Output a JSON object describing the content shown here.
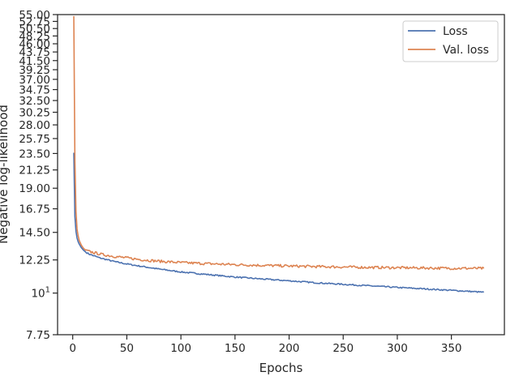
{
  "chart_data": {
    "type": "line",
    "title": "",
    "xlabel": "Epochs",
    "ylabel": "Negative log-likelihood",
    "y_scale": "log",
    "xlim": [
      -14,
      399
    ],
    "ylim": [
      7.75,
      55.0
    ],
    "x_ticks": [
      0,
      50,
      100,
      150,
      200,
      250,
      300,
      350
    ],
    "y_ticks": [
      {
        "value": 55.0,
        "label": "55.00"
      },
      {
        "value": 52.75,
        "label": "52.75"
      },
      {
        "value": 50.5,
        "label": "50.50"
      },
      {
        "value": 48.25,
        "label": "48.25"
      },
      {
        "value": 46.0,
        "label": "46.00"
      },
      {
        "value": 43.75,
        "label": "43.75"
      },
      {
        "value": 41.5,
        "label": "41.50"
      },
      {
        "value": 39.25,
        "label": "39.25"
      },
      {
        "value": 37.0,
        "label": "37.00"
      },
      {
        "value": 34.75,
        "label": "34.75"
      },
      {
        "value": 32.5,
        "label": "32.50"
      },
      {
        "value": 30.25,
        "label": "30.25"
      },
      {
        "value": 28.0,
        "label": "28.00"
      },
      {
        "value": 25.75,
        "label": "25.75"
      },
      {
        "value": 23.5,
        "label": "23.50"
      },
      {
        "value": 21.25,
        "label": "21.25"
      },
      {
        "value": 19.0,
        "label": "19.00"
      },
      {
        "value": 16.75,
        "label": "16.75"
      },
      {
        "value": 14.5,
        "label": "14.50"
      },
      {
        "value": 12.25,
        "label": "12.25"
      },
      {
        "value": 10.0,
        "label": "10",
        "sup": "1"
      },
      {
        "value": 7.75,
        "label": "7.75"
      }
    ],
    "legend": "top-right",
    "grid": false,
    "series": [
      {
        "name": "Loss",
        "color": "#4c72b0",
        "points": [
          [
            1,
            23.6
          ],
          [
            2,
            16.0
          ],
          [
            3,
            14.6
          ],
          [
            4,
            14.0
          ],
          [
            5,
            13.7
          ],
          [
            6,
            13.5
          ],
          [
            8,
            13.2
          ],
          [
            10,
            13.0
          ],
          [
            12,
            12.85
          ],
          [
            15,
            12.7
          ],
          [
            20,
            12.55
          ],
          [
            25,
            12.4
          ],
          [
            30,
            12.3
          ],
          [
            40,
            12.1
          ],
          [
            50,
            11.95
          ],
          [
            60,
            11.82
          ],
          [
            70,
            11.7
          ],
          [
            80,
            11.58
          ],
          [
            90,
            11.48
          ],
          [
            100,
            11.38
          ],
          [
            125,
            11.2
          ],
          [
            150,
            11.03
          ],
          [
            175,
            10.9
          ],
          [
            200,
            10.78
          ],
          [
            225,
            10.65
          ],
          [
            250,
            10.55
          ],
          [
            275,
            10.45
          ],
          [
            300,
            10.35
          ],
          [
            325,
            10.26
          ],
          [
            350,
            10.17
          ],
          [
            380,
            10.05
          ]
        ]
      },
      {
        "name": "Val. loss",
        "color": "#dd8452",
        "points": [
          [
            1,
            54.5
          ],
          [
            2,
            22.5
          ],
          [
            3,
            16.5
          ],
          [
            4,
            14.8
          ],
          [
            5,
            14.2
          ],
          [
            6,
            13.8
          ],
          [
            8,
            13.4
          ],
          [
            10,
            13.15
          ],
          [
            12,
            13.0
          ],
          [
            15,
            12.9
          ],
          [
            20,
            12.8
          ],
          [
            25,
            12.7
          ],
          [
            30,
            12.62
          ],
          [
            40,
            12.5
          ],
          [
            50,
            12.4
          ],
          [
            60,
            12.3
          ],
          [
            70,
            12.22
          ],
          [
            80,
            12.15
          ],
          [
            90,
            12.1
          ],
          [
            100,
            12.05
          ],
          [
            125,
            11.97
          ],
          [
            150,
            11.9
          ],
          [
            175,
            11.85
          ],
          [
            200,
            11.8
          ],
          [
            225,
            11.76
          ],
          [
            250,
            11.73
          ],
          [
            275,
            11.7
          ],
          [
            300,
            11.68
          ],
          [
            325,
            11.66
          ],
          [
            350,
            11.64
          ],
          [
            380,
            11.63
          ]
        ]
      }
    ]
  }
}
